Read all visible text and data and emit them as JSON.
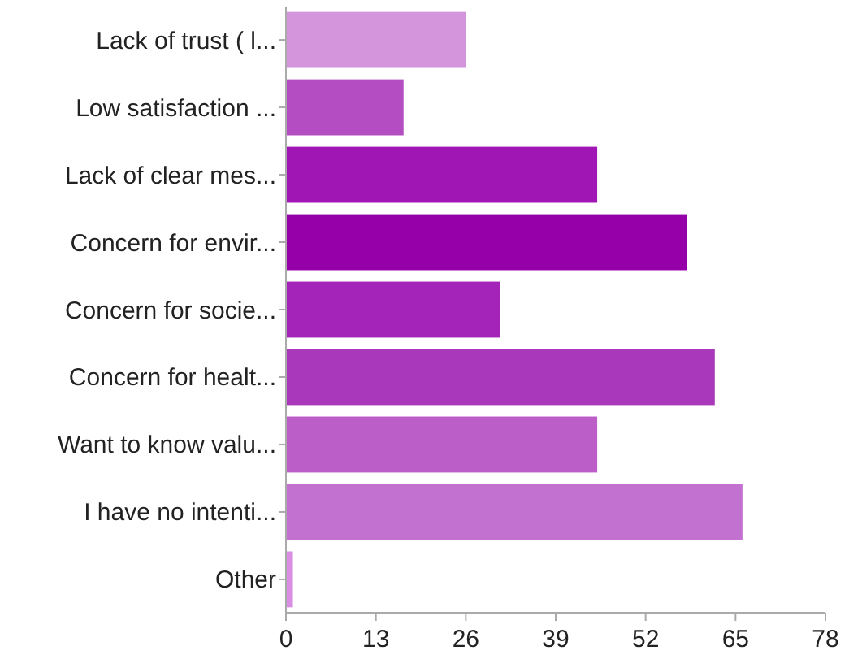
{
  "chart_data": {
    "type": "bar",
    "orientation": "horizontal",
    "categories": [
      "Lack of trust ( l...",
      "Low satisfaction ...",
      "Lack of clear mes...",
      "Concern for envir...",
      "Concern for socie...",
      "Concern for healt...",
      "Want to know valu...",
      "I have no intenti...",
      "Other"
    ],
    "values": [
      26,
      17,
      45,
      58,
      31,
      62,
      45,
      66,
      1
    ],
    "colors": [
      "#d595dc",
      "#b44dc2",
      "#a016b4",
      "#9500a8",
      "#a423b8",
      "#aa38bb",
      "#bb5ec8",
      "#c271d0",
      "#d98ee3"
    ],
    "xlim": [
      0,
      78
    ],
    "xticks": [
      0,
      13,
      26,
      39,
      52,
      65,
      78
    ],
    "grid": false
  }
}
